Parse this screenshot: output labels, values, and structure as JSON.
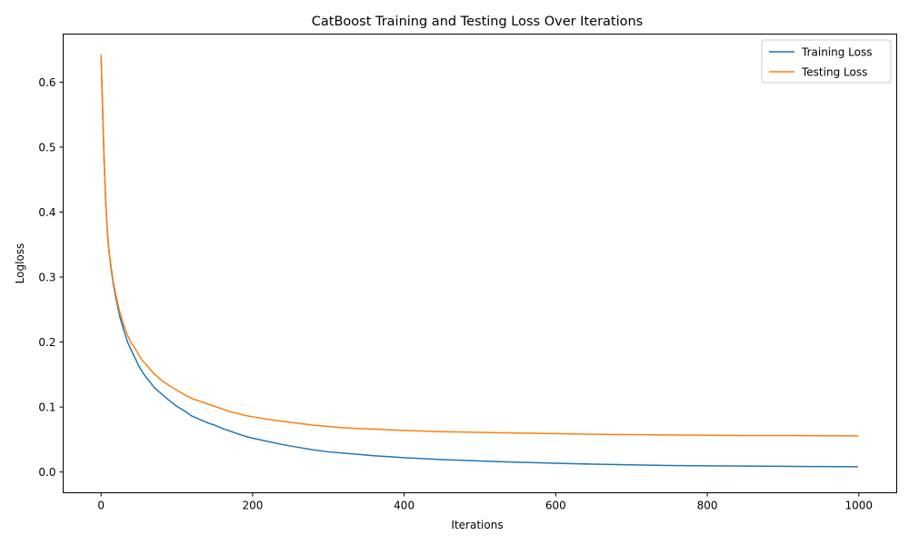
{
  "chart_data": {
    "type": "line",
    "title": "CatBoost Training and Testing Loss Over Iterations",
    "xlabel": "Iterations",
    "ylabel": "Logloss",
    "xlim": [
      -50,
      1050
    ],
    "ylim": [
      -0.032,
      0.674
    ],
    "xticks": [
      0,
      200,
      400,
      600,
      800,
      1000
    ],
    "xtick_labels": [
      "0",
      "200",
      "400",
      "600",
      "800",
      "1000"
    ],
    "yticks": [
      0.0,
      0.1,
      0.2,
      0.3,
      0.4,
      0.5,
      0.6
    ],
    "ytick_labels": [
      "0.0",
      "0.1",
      "0.2",
      "0.3",
      "0.4",
      "0.5",
      "0.6"
    ],
    "grid": false,
    "legend_position": "top-right",
    "series": [
      {
        "name": "Training Loss",
        "color": "#1f77b4",
        "x": [
          0,
          2,
          4,
          6,
          8,
          10,
          13,
          16,
          20,
          25,
          30,
          35,
          40,
          45,
          50,
          55,
          60,
          65,
          70,
          80,
          90,
          100,
          110,
          120,
          130,
          140,
          150,
          160,
          170,
          180,
          190,
          200,
          220,
          240,
          260,
          280,
          300,
          320,
          340,
          360,
          380,
          400,
          450,
          500,
          550,
          600,
          650,
          700,
          750,
          800,
          850,
          900,
          950,
          999
        ],
        "y": [
          0.642,
          0.56,
          0.48,
          0.42,
          0.375,
          0.345,
          0.315,
          0.29,
          0.265,
          0.238,
          0.218,
          0.2,
          0.187,
          0.175,
          0.163,
          0.153,
          0.145,
          0.138,
          0.13,
          0.12,
          0.11,
          0.101,
          0.094,
          0.086,
          0.081,
          0.076,
          0.072,
          0.067,
          0.063,
          0.059,
          0.055,
          0.052,
          0.047,
          0.042,
          0.038,
          0.034,
          0.031,
          0.029,
          0.027,
          0.025,
          0.0235,
          0.022,
          0.019,
          0.017,
          0.015,
          0.0135,
          0.012,
          0.011,
          0.01,
          0.0095,
          0.009,
          0.0087,
          0.0083,
          0.008
        ]
      },
      {
        "name": "Testing Loss",
        "color": "#ff7f0e",
        "x": [
          0,
          2,
          4,
          6,
          8,
          10,
          13,
          16,
          20,
          25,
          30,
          35,
          40,
          45,
          50,
          55,
          60,
          65,
          70,
          80,
          90,
          100,
          110,
          120,
          130,
          140,
          150,
          160,
          170,
          180,
          190,
          200,
          220,
          240,
          260,
          280,
          300,
          320,
          340,
          360,
          380,
          400,
          450,
          500,
          550,
          600,
          650,
          700,
          750,
          800,
          850,
          900,
          950,
          999
        ],
        "y": [
          0.642,
          0.56,
          0.48,
          0.42,
          0.375,
          0.345,
          0.318,
          0.293,
          0.27,
          0.245,
          0.226,
          0.21,
          0.198,
          0.19,
          0.18,
          0.171,
          0.165,
          0.158,
          0.151,
          0.141,
          0.133,
          0.126,
          0.119,
          0.113,
          0.109,
          0.105,
          0.101,
          0.097,
          0.093,
          0.09,
          0.087,
          0.085,
          0.081,
          0.078,
          0.075,
          0.072,
          0.07,
          0.068,
          0.067,
          0.066,
          0.065,
          0.064,
          0.062,
          0.061,
          0.06,
          0.059,
          0.058,
          0.0575,
          0.057,
          0.0565,
          0.056,
          0.056,
          0.0558,
          0.0556
        ]
      }
    ]
  }
}
